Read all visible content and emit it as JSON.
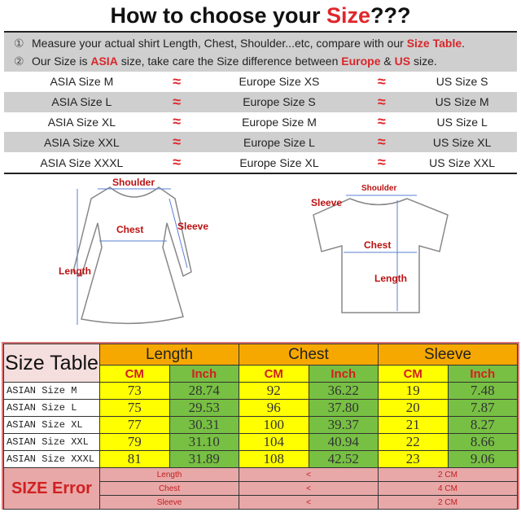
{
  "title": {
    "prefix": "How to choose your ",
    "highlight": "Size",
    "suffix": "???"
  },
  "instructions": [
    {
      "num": "①",
      "parts": [
        "Measure your actual shirt Length, Chest, Shoulder...etc, compare with our ",
        "Size Table",
        "."
      ]
    },
    {
      "num": "②",
      "parts": [
        "Our Size is ",
        "ASIA",
        " size, take care the Size difference between ",
        "Europe",
        " & ",
        "US",
        " size."
      ]
    }
  ],
  "conversion": {
    "approx": "≈",
    "rows": [
      {
        "asia": "ASIA Size M",
        "europe": "Europe Size XS",
        "us": "US Size S"
      },
      {
        "asia": "ASIA Size L",
        "europe": "Europe Size S",
        "us": "US Size M"
      },
      {
        "asia": "ASIA Size XL",
        "europe": "Europe Size M",
        "us": "US Size L"
      },
      {
        "asia": "ASIA Size XXL",
        "europe": "Europe Size L",
        "us": "US Size XL"
      },
      {
        "asia": "ASIA Size XXXL",
        "europe": "Europe Size XL",
        "us": "US Size XXL"
      }
    ]
  },
  "diagrams": {
    "dress": {
      "shoulder": "Shoulder",
      "chest": "Chest",
      "sleeve": "Sleeve",
      "length": "Length"
    },
    "tshirt": {
      "shoulder": "Shoulder",
      "sleeve": "Sleeve",
      "chest": "Chest",
      "length": "Length"
    }
  },
  "size_table": {
    "title": "Size Table",
    "groups": [
      "Length",
      "Chest",
      "Sleeve"
    ],
    "units": [
      "CM",
      "Inch"
    ],
    "rows": [
      {
        "size": "ASIAN Size M",
        "values": [
          "73",
          "28.74",
          "92",
          "36.22",
          "19",
          "7.48"
        ]
      },
      {
        "size": "ASIAN Size L",
        "values": [
          "75",
          "29.53",
          "96",
          "37.80",
          "20",
          "7.87"
        ]
      },
      {
        "size": "ASIAN Size XL",
        "values": [
          "77",
          "30.31",
          "100",
          "39.37",
          "21",
          "8.27"
        ]
      },
      {
        "size": "ASIAN Size XXL",
        "values": [
          "79",
          "31.10",
          "104",
          "40.94",
          "22",
          "8.66"
        ]
      },
      {
        "size": "ASIAN Size XXXL",
        "values": [
          "81",
          "31.89",
          "108",
          "42.52",
          "23",
          "9.06"
        ]
      }
    ],
    "error": {
      "label": "SIZE Error",
      "rows": [
        {
          "item": "Length",
          "op": "<",
          "value": "2 CM"
        },
        {
          "item": "Chest",
          "op": "<",
          "value": "4 CM"
        },
        {
          "item": "Sleeve",
          "op": "<",
          "value": "2 CM"
        }
      ]
    }
  }
}
